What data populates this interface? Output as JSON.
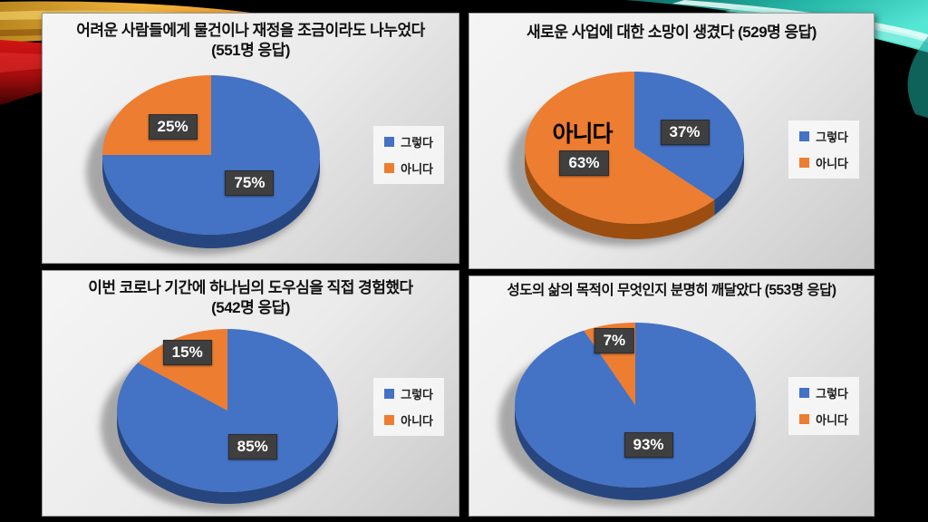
{
  "background": {
    "color": "#000000",
    "panel_color_top": "#f5f5f5",
    "panel_color_bottom": "#c9c9c9",
    "accent_warm": [
      "#f2b33c",
      "#ec9a2b",
      "#c96f15"
    ],
    "accent_red": "#c01010",
    "accent_teal": [
      "#0c6b62",
      "#23b3a4",
      "#55e6d4"
    ],
    "accent_white_streak": "#f2fffc"
  },
  "series_colors": {
    "yes": "#4472C4",
    "no": "#ED7D31"
  },
  "label_box_color": "#3f3f3f",
  "chart_data": [
    {
      "type": "pie",
      "style": "3d",
      "title": "어려운 사람들에게 물건이나 재정을 조금이라도 나누었다 (551명 응답)",
      "title_lines": [
        "어려운 사람들에게 물건이나 재정을 조금이라도 나누었다",
        "(551명 응답)"
      ],
      "respondents": 551,
      "categories": [
        "그렇다",
        "아니다"
      ],
      "values": [
        75,
        25
      ],
      "value_labels": [
        "75%",
        "25%"
      ],
      "colors": [
        "#4472C4",
        "#ED7D31"
      ],
      "side_colors": [
        "#27467f",
        "#9c4e10"
      ],
      "start_angle": 0,
      "direction": "clockwise",
      "legend_position": "right",
      "annotation": null
    },
    {
      "type": "pie",
      "style": "3d",
      "title": "새로운 사업에 대한 소망이 생겼다 (529명 응답)",
      "title_lines": [
        "새로운 사업에 대한 소망이 생겼다 (529명 응답)"
      ],
      "respondents": 529,
      "categories": [
        "그렇다",
        "아니다"
      ],
      "values": [
        37,
        63
      ],
      "value_labels": [
        "37%",
        "63%"
      ],
      "colors": [
        "#4472C4",
        "#ED7D31"
      ],
      "side_colors": [
        "#27467f",
        "#9c4e10"
      ],
      "start_angle": 0,
      "direction": "clockwise",
      "legend_position": "right",
      "annotation": {
        "text": "아니다",
        "slice_index": 1
      }
    },
    {
      "type": "pie",
      "style": "3d",
      "title": "이번 코로나 기간에 하나님의 도우심을 직접 경험했다 (542명 응답)",
      "title_lines": [
        "이번 코로나 기간에 하나님의 도우심을 직접 경험했다",
        "(542명 응답)"
      ],
      "respondents": 542,
      "categories": [
        "그렇다",
        "아니다"
      ],
      "values": [
        85,
        15
      ],
      "value_labels": [
        "85%",
        "15%"
      ],
      "colors": [
        "#4472C4",
        "#ED7D31"
      ],
      "side_colors": [
        "#27467f",
        "#9c4e10"
      ],
      "start_angle": 0,
      "direction": "clockwise",
      "legend_position": "right",
      "annotation": null
    },
    {
      "type": "pie",
      "style": "3d",
      "title": "성도의 삶의 목적이 무엇인지 분명히 깨달았다 (553명 응답)",
      "title_lines": [
        "성도의 삶의 목적이 무엇인지 분명히 깨달았다 (553명 응답)"
      ],
      "respondents": 553,
      "categories": [
        "그렇다",
        "아니다"
      ],
      "values": [
        93,
        7
      ],
      "value_labels": [
        "93%",
        "7%"
      ],
      "colors": [
        "#4472C4",
        "#ED7D31"
      ],
      "side_colors": [
        "#27467f",
        "#9c4e10"
      ],
      "start_angle": 0,
      "direction": "clockwise",
      "legend_position": "right",
      "annotation": null
    }
  ]
}
